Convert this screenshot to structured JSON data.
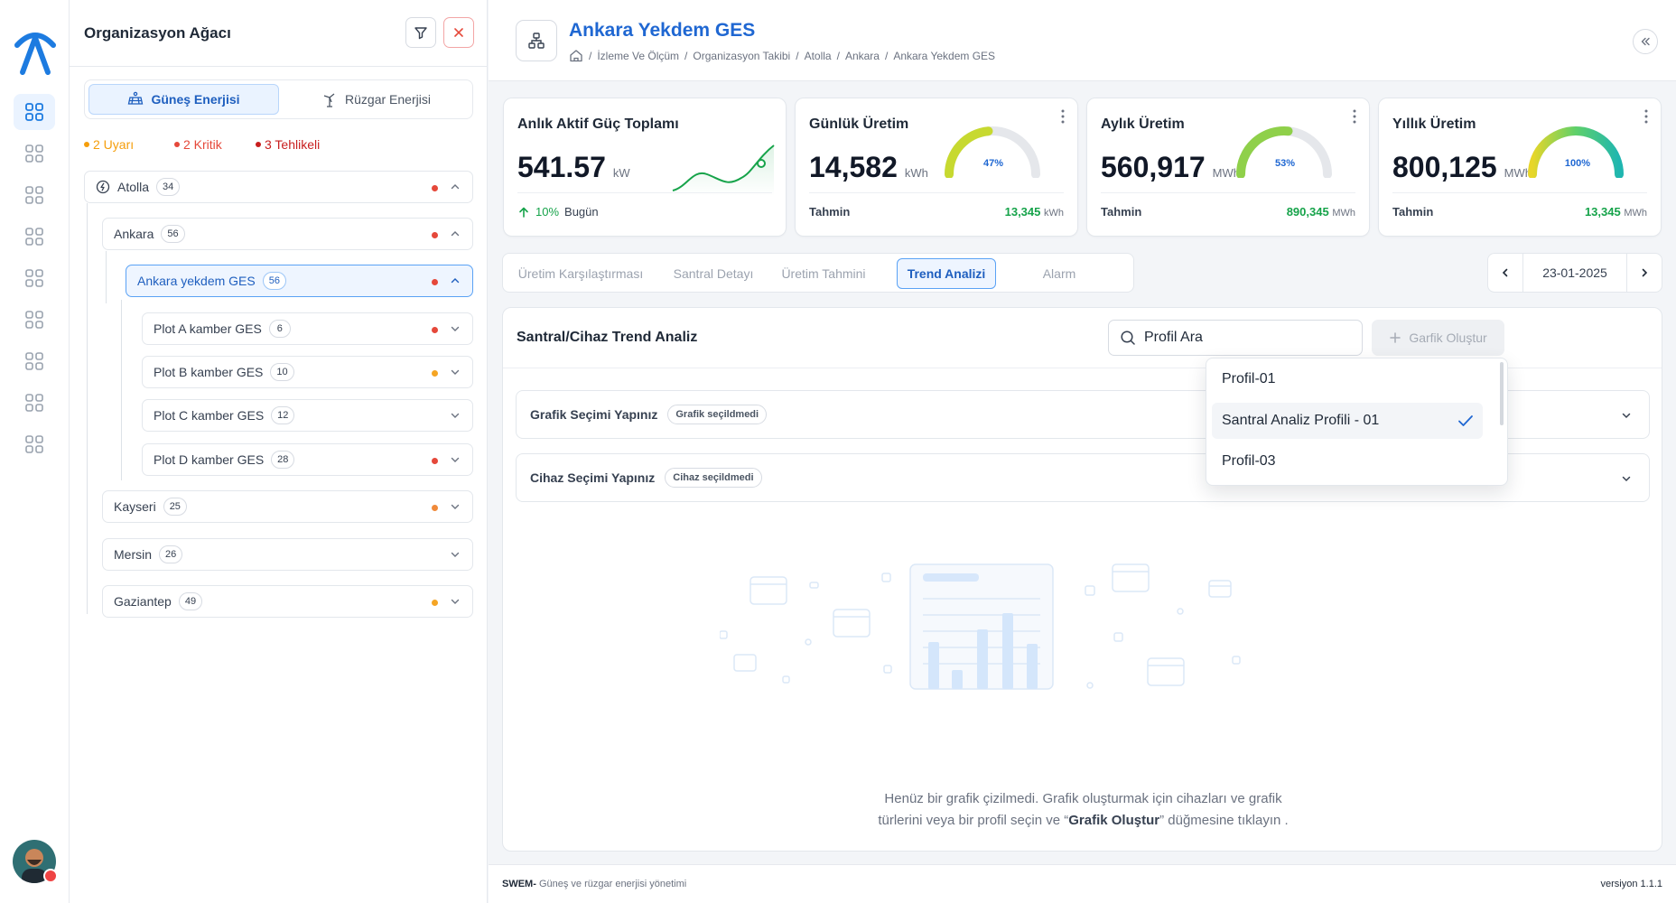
{
  "org": {
    "title": "Organizasyon Ağacı",
    "tabs": [
      {
        "label": "Güneş Enerjisi",
        "active": true
      },
      {
        "label": "Rüzgar Enerjisi",
        "active": false
      }
    ],
    "legend": [
      {
        "label": "2 Uyarı",
        "color": "#f59e0b"
      },
      {
        "label": "2 Kritik",
        "color": "#e5483a"
      },
      {
        "label": "3 Tehlikeli",
        "color": "#c81e1e"
      }
    ],
    "tree": [
      {
        "label": "Atolla",
        "count": "34"
      },
      {
        "label": "Ankara",
        "count": "56"
      },
      {
        "label": "Ankara yekdem GES",
        "count": "56"
      },
      {
        "label": "Plot A kamber GES",
        "count": "6"
      },
      {
        "label": "Plot B kamber GES",
        "count": "10"
      },
      {
        "label": "Plot C kamber GES",
        "count": "12"
      },
      {
        "label": "Plot D kamber GES",
        "count": "28"
      },
      {
        "label": "Kayseri",
        "count": "25"
      },
      {
        "label": "Mersin",
        "count": "26"
      },
      {
        "label": "Gaziantep",
        "count": "49"
      }
    ]
  },
  "header": {
    "title": "Ankara Yekdem GES",
    "breadcrumb": [
      "İzleme Ve Ölçüm",
      "Organizasyon Takibi",
      "Atolla",
      "Ankara",
      "Ankara Yekdem GES"
    ]
  },
  "cards": [
    {
      "title": "Anlık Aktif Güç Toplamı",
      "value": "541.57",
      "unit": "kW",
      "change": "10%",
      "change_label": "Bugün"
    },
    {
      "title": "Günlük Üretim",
      "value": "14,582",
      "unit": "kWh",
      "forecast_label": "Tahmin",
      "forecast": "13,345",
      "forecast_unit": "kWh",
      "percent": "47%",
      "percent_value": 47
    },
    {
      "title": "Aylık Üretim",
      "value": "560,917",
      "unit": "MWh",
      "forecast_label": "Tahmin",
      "forecast": "890,345",
      "forecast_unit": "MWh",
      "percent": "53%",
      "percent_value": 53
    },
    {
      "title": "Yıllık Üretim",
      "value": "800,125",
      "unit": "MWh",
      "forecast_label": "Tahmin",
      "forecast": "13,345",
      "forecast_unit": "MWh",
      "percent": "100%",
      "percent_value": 100
    }
  ],
  "tabs": [
    {
      "label": "Üretim Karşılaştırması",
      "active": false
    },
    {
      "label": "Santral Detayı",
      "active": false
    },
    {
      "label": "Üretim Tahmini",
      "active": false
    },
    {
      "label": "Trend Analizi",
      "active": true
    },
    {
      "label": "Alarm",
      "active": false
    }
  ],
  "date": "23-01-2025",
  "panel": {
    "title": "Santral/Cihaz Trend Analiz",
    "search_value": "Profil Ara",
    "create_button": "Garfik Oluştur",
    "accordions": [
      {
        "label": "Grafik Seçimi Yapınız",
        "tag": "Grafik seçildmedi"
      },
      {
        "label": "Cihaz Seçimi Yapınız",
        "tag": "Cihaz seçildmedi"
      }
    ],
    "dropdown": [
      {
        "label": "Profil-01",
        "selected": false
      },
      {
        "label": "Santral Analiz Profili - 01",
        "selected": true
      },
      {
        "label": "Profil-03",
        "selected": false
      }
    ],
    "empty_line1": "Henüz bir grafik çizilmedi. Grafik oluşturmak için cihazları ve grafik",
    "empty_line2_pre": "türlerini veya bir profil seçin ve “",
    "empty_line2_bold": "Grafik Oluştur",
    "empty_line2_post": "” düğmesine tıklayın ."
  },
  "footer": {
    "brand": "SWEM-",
    "tagline": " Güneş ve rüzgar enerjisi yönetimi",
    "version": "versiyon 1.1.1"
  },
  "colors": {
    "accent": "#1f67d2",
    "success": "#16a34a",
    "warning": "#f59e0b",
    "danger": "#e5483a"
  }
}
